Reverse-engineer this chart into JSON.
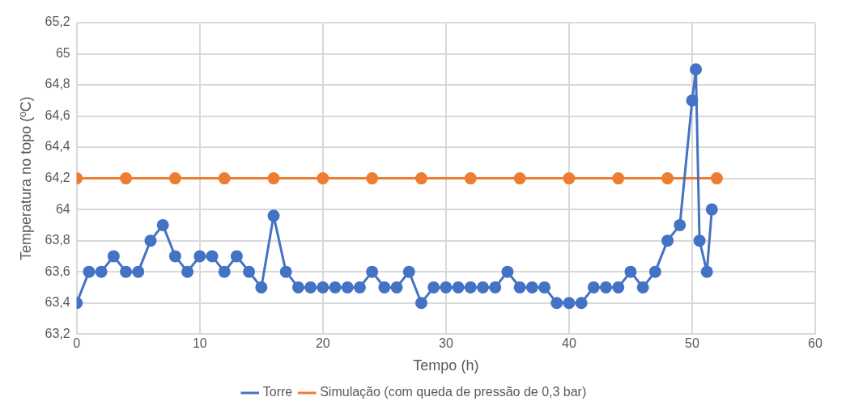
{
  "chart_data": {
    "type": "line",
    "xlabel": "Tempo (h)",
    "ylabel": "Temperatura no topo (ºC)",
    "xlim": [
      0,
      60
    ],
    "xticks": [
      0,
      10,
      20,
      30,
      40,
      50,
      60
    ],
    "ylim": [
      63.2,
      65.2
    ],
    "yticks": [
      {
        "value": 63.2,
        "label": "63,2"
      },
      {
        "value": 63.4,
        "label": "63,4"
      },
      {
        "value": 63.6,
        "label": "63,6"
      },
      {
        "value": 63.8,
        "label": "63,8"
      },
      {
        "value": 64,
        "label": "64"
      },
      {
        "value": 64.2,
        "label": "64,2"
      },
      {
        "value": 64.4,
        "label": "64,4"
      },
      {
        "value": 64.6,
        "label": "64,6"
      },
      {
        "value": 64.8,
        "label": "64,8"
      },
      {
        "value": 65,
        "label": "65"
      },
      {
        "value": 65.2,
        "label": "65,2"
      }
    ],
    "grid": true,
    "legend": "bottom",
    "marker": "circle",
    "line_style": "solid",
    "series": [
      {
        "name": "Torre",
        "color": "#4472c4",
        "x": [
          0,
          1,
          2,
          3,
          4,
          5,
          6,
          7,
          8,
          9,
          10,
          11,
          12,
          13,
          14,
          15,
          16,
          17,
          18,
          19,
          20,
          21,
          22,
          23,
          24,
          25,
          26,
          27,
          28,
          29,
          30,
          31,
          32,
          33,
          34,
          35,
          36,
          37,
          38,
          39,
          40,
          41,
          42,
          43,
          44,
          45,
          46,
          47,
          48,
          49,
          50,
          50.3,
          50.6,
          51.2,
          51.6
        ],
        "values": [
          63.4,
          63.6,
          63.6,
          63.7,
          63.6,
          63.6,
          63.8,
          63.9,
          63.7,
          63.6,
          63.7,
          63.7,
          63.6,
          63.7,
          63.6,
          63.5,
          63.96,
          63.6,
          63.5,
          63.5,
          63.5,
          63.5,
          63.5,
          63.5,
          63.6,
          63.5,
          63.5,
          63.6,
          63.4,
          63.5,
          63.5,
          63.5,
          63.5,
          63.5,
          63.5,
          63.6,
          63.5,
          63.5,
          63.5,
          63.4,
          63.4,
          63.4,
          63.5,
          63.5,
          63.5,
          63.6,
          63.5,
          63.6,
          63.8,
          63.9,
          64.7,
          64.9,
          63.8,
          63.6,
          64.0
        ]
      },
      {
        "name": "Simulação (com queda de pressão de 0,3 bar)",
        "color": "#ed7d31",
        "x": [
          0,
          4,
          8,
          12,
          16,
          20,
          24,
          28,
          32,
          36,
          40,
          44,
          48,
          52
        ],
        "values": [
          64.2,
          64.2,
          64.2,
          64.2,
          64.2,
          64.2,
          64.2,
          64.2,
          64.2,
          64.2,
          64.2,
          64.2,
          64.2,
          64.2
        ]
      }
    ]
  }
}
